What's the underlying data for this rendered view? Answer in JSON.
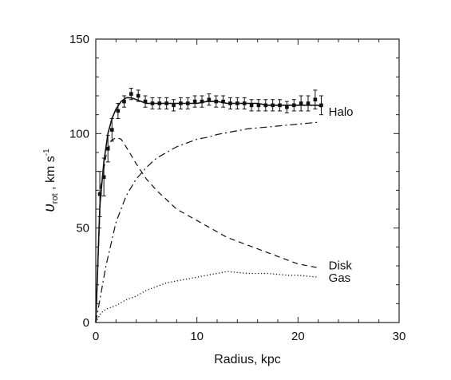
{
  "chart_data": {
    "type": "line",
    "xlabel": "Radius, kpc",
    "ylabel_main": "υ",
    "ylabel_sub": "rot",
    "ylabel_rest": " , km s",
    "ylabel_sup": "-1",
    "xlim": [
      0,
      30
    ],
    "ylim": [
      0,
      150
    ],
    "x_ticks": [
      "0",
      "10",
      "20",
      "30"
    ],
    "y_ticks": [
      "0",
      "50",
      "100",
      "150"
    ],
    "grid": false,
    "legend": "inline labels at right end of curves",
    "observed": {
      "x": [
        0.4,
        0.8,
        1.2,
        1.6,
        2.2,
        2.8,
        3.5,
        4.2,
        4.9,
        5.6,
        6.3,
        7.0,
        7.7,
        8.4,
        9.1,
        9.8,
        10.5,
        11.2,
        11.9,
        12.6,
        13.3,
        14.0,
        14.7,
        15.4,
        16.1,
        16.8,
        17.5,
        18.2,
        18.9,
        19.6,
        20.3,
        21.0,
        21.7,
        22.3
      ],
      "y": [
        68,
        77,
        92,
        102,
        112,
        117,
        121,
        120,
        117,
        116,
        116,
        116,
        115,
        116,
        116,
        117,
        117,
        118,
        117,
        117,
        116,
        116,
        116,
        115,
        115,
        115,
        115,
        115,
        114,
        115,
        116,
        116,
        118,
        115
      ],
      "err": [
        12,
        10,
        7,
        6,
        4,
        3,
        3,
        3,
        3,
        3,
        3,
        3,
        3,
        3,
        3,
        3,
        3,
        3,
        3,
        3,
        3,
        3,
        3,
        3,
        3,
        3,
        3,
        3,
        3,
        3,
        4,
        4,
        5,
        5
      ]
    },
    "series": [
      {
        "kind": "fit",
        "x": [
          0,
          0.4,
          0.8,
          1.2,
          1.6,
          2.0,
          2.5,
          3.0,
          3.5,
          4.0,
          4.5,
          5.0,
          6.0,
          7.0,
          8.0,
          9.0,
          10.0,
          11.0,
          12.0,
          13.0,
          14.0,
          15.0,
          16.0,
          17.0,
          18.0,
          19.0,
          20.0,
          21.0,
          22.0,
          22.3
        ],
        "y": [
          0,
          62,
          85,
          100,
          108,
          113,
          117,
          119,
          119,
          118,
          117,
          116,
          116,
          116,
          116,
          116,
          116,
          117,
          117,
          116,
          116,
          116,
          116,
          115,
          115,
          115,
          115,
          115,
          115,
          114
        ]
      },
      {
        "name": "Disk",
        "kind": "dashed",
        "x": [
          0,
          0.5,
          1.0,
          1.5,
          2.0,
          2.5,
          3.0,
          4.0,
          5.0,
          6.0,
          7.0,
          8.0,
          9.0,
          10.0,
          11.0,
          12.0,
          13.0,
          14.0,
          15.0,
          16.0,
          17.0,
          18.0,
          19.0,
          20.0,
          21.0,
          22.0
        ],
        "y": [
          0,
          72,
          88,
          96,
          98,
          97,
          93,
          84,
          76,
          70,
          65,
          60,
          57,
          54,
          51,
          48,
          45,
          43,
          41,
          39,
          37,
          35,
          33,
          31,
          30,
          29
        ]
      },
      {
        "name": "Halo",
        "kind": "dashdot",
        "x": [
          0,
          1.0,
          2.0,
          3.0,
          4.0,
          5.0,
          6.0,
          7.0,
          8.0,
          9.0,
          10.0,
          11.0,
          12.0,
          13.0,
          14.0,
          15.0,
          16.0,
          17.0,
          18.0,
          19.0,
          20.0,
          21.0,
          22.0
        ],
        "y": [
          0,
          30,
          53,
          67,
          76,
          82,
          87,
          90,
          93,
          95,
          97,
          98,
          99.5,
          100.5,
          101.5,
          102.5,
          103,
          103.5,
          104,
          104.5,
          105,
          105.5,
          106
        ]
      },
      {
        "name": "Gas",
        "kind": "dotted",
        "x": [
          0,
          0.5,
          1.0,
          1.5,
          2.0,
          3.0,
          4.0,
          5.0,
          6.0,
          7.0,
          8.0,
          9.0,
          10.0,
          11.0,
          12.0,
          13.0,
          14.0,
          15.0,
          16.0,
          17.0,
          18.0,
          19.0,
          20.0,
          21.0,
          22.0
        ],
        "y": [
          0,
          5,
          7,
          8,
          9,
          12,
          14,
          17,
          19,
          21,
          22,
          23,
          24,
          25,
          26,
          27,
          26.5,
          26,
          26,
          26,
          25.5,
          25,
          25,
          24.5,
          24
        ]
      }
    ]
  }
}
